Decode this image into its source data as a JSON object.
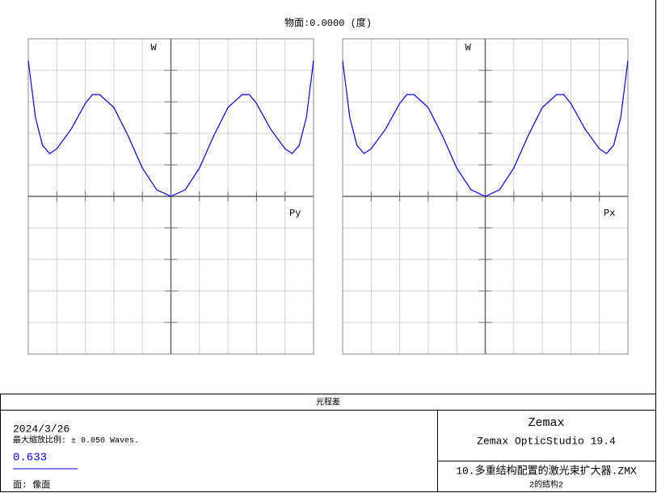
{
  "title": "物面:0.0000 (度)",
  "chart_data": [
    {
      "type": "line",
      "ylabel": "W",
      "xlabel": "Py",
      "color": "#0000ee",
      "x": [
        -1,
        -0.95,
        -0.9,
        -0.85,
        -0.8,
        -0.7,
        -0.6,
        -0.55,
        -0.5,
        -0.4,
        -0.3,
        -0.2,
        -0.1,
        0,
        0.1,
        0.2,
        0.3,
        0.4,
        0.5,
        0.55,
        0.6,
        0.7,
        0.8,
        0.85,
        0.9,
        0.95,
        1
      ],
      "values": [
        0.0431,
        0.0251,
        0.0162,
        0.0136,
        0.0151,
        0.0213,
        0.0295,
        0.0323,
        0.0323,
        0.0282,
        0.0192,
        0.009,
        0.0021,
        0,
        0.0021,
        0.009,
        0.0192,
        0.0282,
        0.0323,
        0.0323,
        0.0295,
        0.0213,
        0.0151,
        0.0136,
        0.0162,
        0.0251,
        0.0431
      ],
      "xlim": [
        -1,
        1
      ],
      "xticks": [
        -1,
        -0.8,
        -0.6,
        -0.4,
        -0.2,
        0,
        0.2,
        0.4,
        0.6,
        0.8,
        1
      ],
      "ylim": [
        -0.05,
        0.05
      ],
      "yticks": [
        -0.05,
        -0.04,
        -0.03,
        -0.02,
        -0.01,
        0,
        0.01,
        0.02,
        0.03,
        0.04,
        0.05
      ],
      "grid": true
    },
    {
      "type": "line",
      "ylabel": "W",
      "xlabel": "Px",
      "color": "#0000ee",
      "x": [
        -1,
        -0.95,
        -0.9,
        -0.85,
        -0.8,
        -0.7,
        -0.6,
        -0.55,
        -0.5,
        -0.4,
        -0.3,
        -0.2,
        -0.1,
        0,
        0.1,
        0.2,
        0.3,
        0.4,
        0.5,
        0.55,
        0.6,
        0.7,
        0.8,
        0.85,
        0.9,
        0.95,
        1
      ],
      "values": [
        0.0431,
        0.0251,
        0.0162,
        0.0136,
        0.0151,
        0.0213,
        0.0295,
        0.0323,
        0.0323,
        0.0282,
        0.0192,
        0.009,
        0.0021,
        0,
        0.0021,
        0.009,
        0.0192,
        0.0282,
        0.0323,
        0.0323,
        0.0295,
        0.0213,
        0.0151,
        0.0136,
        0.0162,
        0.0251,
        0.0431
      ],
      "xlim": [
        -1,
        1
      ],
      "xticks": [
        -1,
        -0.8,
        -0.6,
        -0.4,
        -0.2,
        0,
        0.2,
        0.4,
        0.6,
        0.8,
        1
      ],
      "ylim": [
        -0.05,
        0.05
      ],
      "yticks": [
        -0.05,
        -0.04,
        -0.03,
        -0.02,
        -0.01,
        0,
        0.01,
        0.02,
        0.03,
        0.04,
        0.05
      ],
      "grid": true
    }
  ],
  "info": {
    "header": "光程差",
    "date": "2024/3/26",
    "scale": "最大缩放比例: ± 0.050 Waves.",
    "wavelength": "0.633",
    "surface": "面: 像面",
    "brand": "Zemax",
    "product": "Zemax OpticStudio 19.4",
    "file": "10.多重结构配置的激光束扩大器.ZMX",
    "config": "2的结构2"
  }
}
